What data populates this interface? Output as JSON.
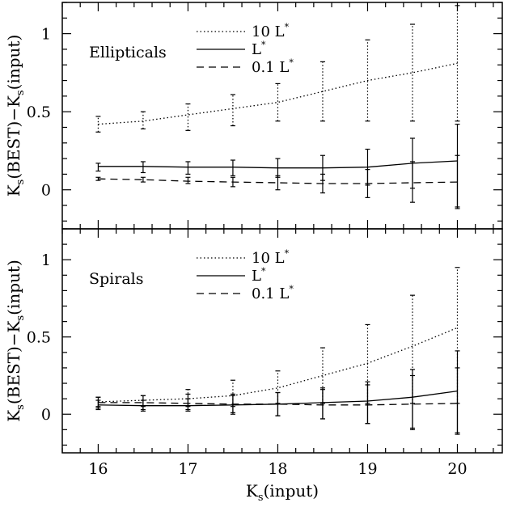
{
  "chart_data": [
    {
      "type": "line",
      "panel_label": "Ellipticals",
      "xlabel_main": "K",
      "xlabel_sub": "s",
      "xlabel_tail": "(input)",
      "ylabel": {
        "a_main": "K",
        "a_sub": "s",
        "a_tail": "(BEST)",
        "minus": "−",
        "b_main": "K",
        "b_sub": "s",
        "b_tail": "(input)"
      },
      "xlim": [
        15.6,
        20.5
      ],
      "ylim": [
        -0.25,
        1.2
      ],
      "xticks": [
        16,
        17,
        18,
        19,
        20
      ],
      "xtick_labels": [
        "16",
        "17",
        "18",
        "19",
        "20"
      ],
      "yticks": [
        0,
        0.5,
        1
      ],
      "ytick_labels": [
        "0",
        "0.5",
        "1"
      ],
      "legend_placement": "top-center",
      "series": [
        {
          "name": "10 L*",
          "name_main": "10  L",
          "name_sup": "*",
          "style": "dotted",
          "x": [
            16,
            16.5,
            17,
            17.5,
            18,
            18.5,
            19,
            19.5,
            20
          ],
          "y": [
            0.42,
            0.44,
            0.48,
            0.52,
            0.56,
            0.63,
            0.7,
            0.75,
            0.81
          ],
          "err_lo": [
            0.37,
            0.39,
            0.38,
            0.41,
            0.44,
            0.44,
            0.44,
            0.44,
            0.44
          ],
          "err_hi": [
            0.47,
            0.5,
            0.55,
            0.61,
            0.68,
            0.82,
            0.96,
            1.06,
            1.18
          ]
        },
        {
          "name": "L*",
          "name_main": "L",
          "name_sup": "*",
          "style": "solid",
          "x": [
            16,
            16.5,
            17,
            17.5,
            18,
            18.5,
            19,
            19.5,
            20
          ],
          "y": [
            0.15,
            0.15,
            0.145,
            0.145,
            0.14,
            0.14,
            0.145,
            0.17,
            0.185
          ],
          "err_lo": [
            0.12,
            0.11,
            0.1,
            0.09,
            0.08,
            0.06,
            0.03,
            0.01,
            -0.12
          ],
          "err_hi": [
            0.17,
            0.18,
            0.18,
            0.19,
            0.2,
            0.22,
            0.26,
            0.33,
            0.42
          ]
        },
        {
          "name": "0.1 L*",
          "name_main": "0.1  L",
          "name_sup": "*",
          "style": "dashed",
          "x": [
            16,
            16.5,
            17,
            17.5,
            18,
            18.5,
            19,
            19.5,
            20
          ],
          "y": [
            0.07,
            0.065,
            0.055,
            0.05,
            0.045,
            0.04,
            0.04,
            0.045,
            0.05
          ],
          "err_lo": [
            0.06,
            0.05,
            0.04,
            0.02,
            0.0,
            -0.02,
            -0.05,
            -0.08,
            -0.11
          ],
          "err_hi": [
            0.08,
            0.08,
            0.08,
            0.08,
            0.09,
            0.1,
            0.13,
            0.18,
            0.22
          ]
        }
      ]
    },
    {
      "type": "line",
      "panel_label": "Spirals",
      "xlabel_main": "K",
      "xlabel_sub": "s",
      "xlabel_tail": "(input)",
      "ylabel": {
        "a_main": "K",
        "a_sub": "s",
        "a_tail": "(BEST)",
        "minus": "−",
        "b_main": "K",
        "b_sub": "s",
        "b_tail": "(input)"
      },
      "xlim": [
        15.6,
        20.5
      ],
      "ylim": [
        -0.25,
        1.2
      ],
      "xticks": [
        16,
        17,
        18,
        19,
        20
      ],
      "xtick_labels": [
        "16",
        "17",
        "18",
        "19",
        "20"
      ],
      "yticks": [
        0,
        0.5,
        1
      ],
      "ytick_labels": [
        "0",
        "0.5",
        "1"
      ],
      "legend_placement": "top-center",
      "series": [
        {
          "name": "10 L*",
          "name_main": "10  L",
          "name_sup": "*",
          "style": "dotted",
          "x": [
            16,
            16.5,
            17,
            17.5,
            18,
            18.5,
            19,
            19.5,
            20
          ],
          "y": [
            0.08,
            0.09,
            0.1,
            0.12,
            0.17,
            0.25,
            0.33,
            0.44,
            0.56
          ],
          "err_lo": [
            0.05,
            0.05,
            0.05,
            0.05,
            0.07,
            0.07,
            0.07,
            0.07,
            0.07
          ],
          "err_hi": [
            0.11,
            0.12,
            0.16,
            0.22,
            0.28,
            0.43,
            0.58,
            0.77,
            0.95
          ]
        },
        {
          "name": "L*",
          "name_main": "L",
          "name_sup": "*",
          "style": "solid",
          "x": [
            16,
            16.5,
            17,
            17.5,
            18,
            18.5,
            19,
            19.5,
            20
          ],
          "y": [
            0.06,
            0.055,
            0.055,
            0.06,
            0.065,
            0.075,
            0.085,
            0.11,
            0.15
          ],
          "err_lo": [
            0.03,
            0.02,
            0.02,
            0.0,
            -0.01,
            -0.03,
            -0.06,
            -0.1,
            -0.13
          ],
          "err_hi": [
            0.09,
            0.09,
            0.1,
            0.12,
            0.14,
            0.17,
            0.21,
            0.29,
            0.41
          ]
        },
        {
          "name": "0.1 L*",
          "name_main": "0.1  L",
          "name_sup": "*",
          "style": "dashed",
          "x": [
            16,
            16.5,
            17,
            17.5,
            18,
            18.5,
            19,
            19.5,
            20
          ],
          "y": [
            0.075,
            0.075,
            0.07,
            0.065,
            0.065,
            0.06,
            0.06,
            0.065,
            0.07
          ],
          "err_lo": [
            0.04,
            0.03,
            0.03,
            0.01,
            -0.01,
            -0.03,
            -0.06,
            -0.09,
            -0.12
          ],
          "err_hi": [
            0.11,
            0.12,
            0.13,
            0.13,
            0.14,
            0.16,
            0.19,
            0.25,
            0.3
          ]
        }
      ]
    }
  ]
}
